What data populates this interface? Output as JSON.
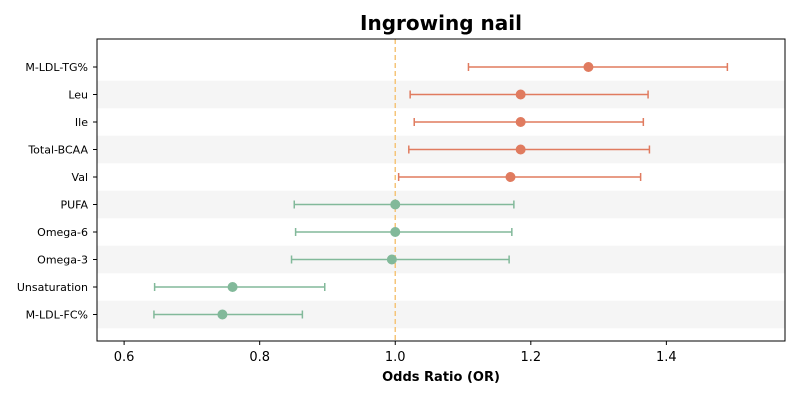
{
  "chart_data": {
    "type": "forest",
    "title": "Ingrowing nail",
    "xlabel": "Odds Ratio (OR)",
    "xlim": [
      0.56,
      1.575
    ],
    "xticks": [
      0.6,
      0.8,
      1.0,
      1.2,
      1.4
    ],
    "xtick_labels": [
      "0.6",
      "0.8",
      "1.0",
      "1.2",
      "1.4"
    ],
    "reference_line": 1.0,
    "colors": {
      "risk": "#e07b5f",
      "protective": "#82b99a",
      "reference": "#f5c57a",
      "band": "#f5f5f5"
    },
    "rows": [
      {
        "label": "M-LDL-TG%",
        "or": 1.285,
        "lower": 1.108,
        "upper": 1.49,
        "group": "risk"
      },
      {
        "label": "Leu",
        "or": 1.185,
        "lower": 1.022,
        "upper": 1.373,
        "group": "risk"
      },
      {
        "label": "Ile",
        "or": 1.185,
        "lower": 1.028,
        "upper": 1.366,
        "group": "risk"
      },
      {
        "label": "Total-BCAA",
        "or": 1.185,
        "lower": 1.02,
        "upper": 1.375,
        "group": "risk"
      },
      {
        "label": "Val",
        "or": 1.17,
        "lower": 1.005,
        "upper": 1.362,
        "group": "risk"
      },
      {
        "label": "PUFA",
        "or": 1.0,
        "lower": 0.851,
        "upper": 1.175,
        "group": "protective"
      },
      {
        "label": "Omega-6",
        "or": 1.0,
        "lower": 0.853,
        "upper": 1.172,
        "group": "protective"
      },
      {
        "label": "Omega-3",
        "or": 0.995,
        "lower": 0.847,
        "upper": 1.168,
        "group": "protective"
      },
      {
        "label": "Unsaturation",
        "or": 0.76,
        "lower": 0.645,
        "upper": 0.896,
        "group": "protective"
      },
      {
        "label": "M-LDL-FC%",
        "or": 0.745,
        "lower": 0.644,
        "upper": 0.863,
        "group": "protective"
      }
    ]
  }
}
